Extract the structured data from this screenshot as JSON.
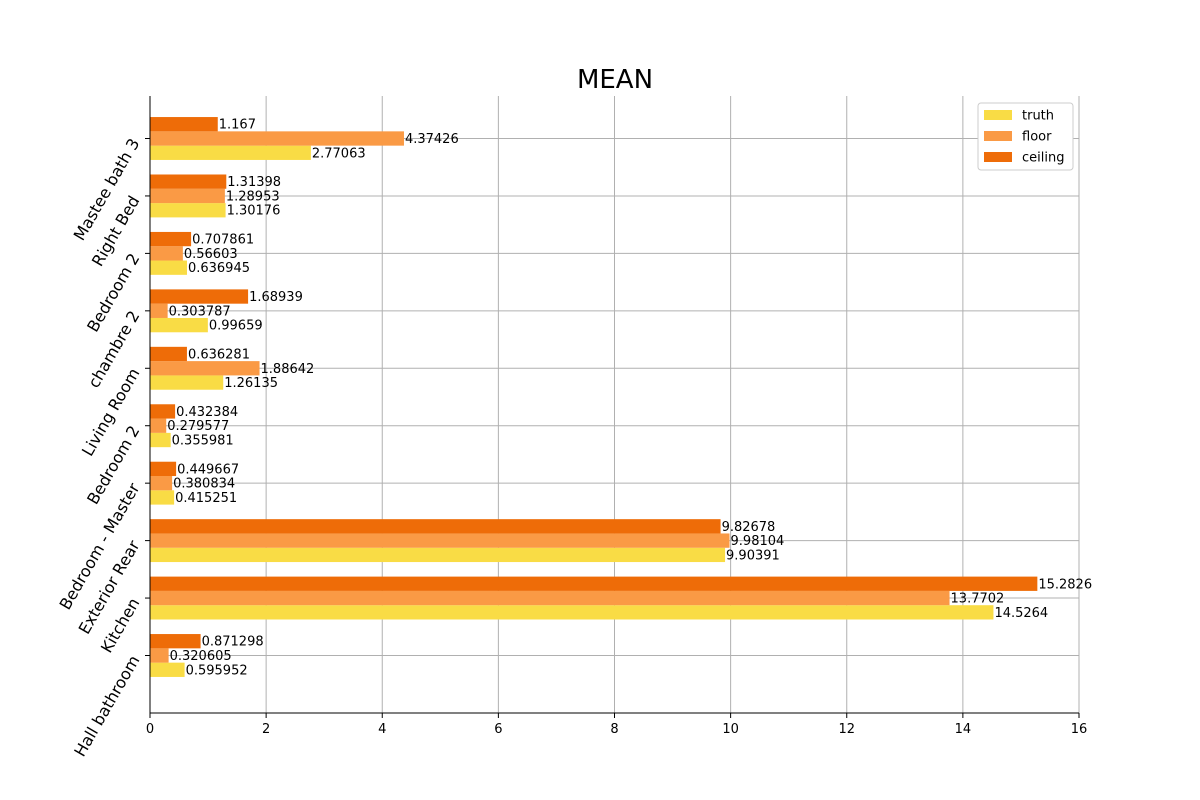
{
  "chart_data": {
    "type": "bar",
    "orientation": "horizontal",
    "title": "MEAN",
    "xlabel": "",
    "ylabel": "",
    "xlim": [
      0,
      16
    ],
    "x_ticks": [
      0,
      2,
      4,
      6,
      8,
      10,
      12,
      14,
      16
    ],
    "grid": true,
    "legend_position": "top-right",
    "categories": [
      "Hall bathroom",
      "Kitchen",
      "Exterior Rear",
      "Bedroom - Master",
      "Bedroom 2",
      "Living Room",
      "chambre 2",
      "Bedroom 2",
      "Right Bed",
      "Mastee bath 3"
    ],
    "series": [
      {
        "name": "truth",
        "color": "#f9dc45",
        "values": [
          0.595952,
          14.5264,
          9.90391,
          0.415251,
          0.355981,
          1.26135,
          0.99659,
          0.636945,
          1.30176,
          2.77063
        ],
        "labels": [
          "0.595952",
          "14.5264",
          "9.90391",
          "0.415251",
          "0.355981",
          "1.26135",
          "0.99659",
          "0.636945",
          "1.30176",
          "2.77063"
        ]
      },
      {
        "name": "floor",
        "color": "#fa9a45",
        "values": [
          0.320605,
          13.7702,
          9.98104,
          0.380834,
          0.279577,
          1.88642,
          0.303787,
          0.56603,
          1.28953,
          4.37426
        ],
        "labels": [
          "0.320605",
          "13.7702",
          "9.98104",
          "0.380834",
          "0.279577",
          "1.88642",
          "0.303787",
          "0.56603",
          "1.28953",
          "4.37426"
        ]
      },
      {
        "name": "ceiling",
        "color": "#ee6c08",
        "values": [
          0.871298,
          15.2826,
          9.82678,
          0.449667,
          0.432384,
          0.636281,
          1.68939,
          0.707861,
          1.31398,
          1.167
        ],
        "labels": [
          "0.871298",
          "15.2826",
          "9.82678",
          "0.449667",
          "0.432384",
          "0.636281",
          "1.68939",
          "0.707861",
          "1.31398",
          "1.167"
        ]
      }
    ]
  }
}
